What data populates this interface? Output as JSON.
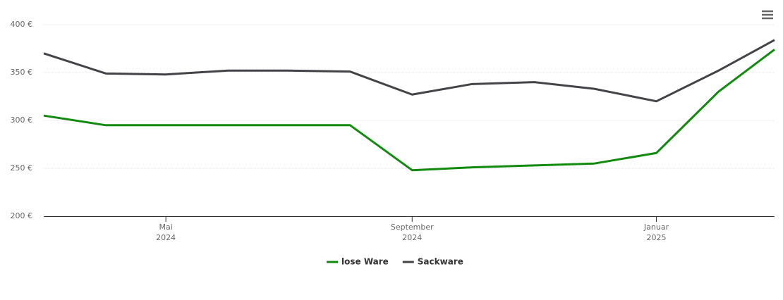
{
  "chart_data": {
    "type": "line",
    "x": [
      "2024-03",
      "2024-04",
      "2024-05",
      "2024-06",
      "2024-07",
      "2024-08",
      "2024-09",
      "2024-10",
      "2024-11",
      "2024-12",
      "2025-01",
      "2025-02",
      "2025-03"
    ],
    "series": [
      {
        "name": "lose Ware",
        "color": "#118a0d",
        "values": [
          305,
          295,
          295,
          295,
          295,
          295,
          248,
          251,
          253,
          255,
          266,
          330,
          374
        ]
      },
      {
        "name": "Sackware",
        "color": "#434348",
        "values": [
          370,
          349,
          348,
          352,
          352,
          351,
          327,
          338,
          340,
          333,
          320,
          352,
          384
        ]
      }
    ],
    "xlim": [
      "2024-03",
      "2025-03"
    ],
    "xticks": [
      {
        "value": "2024-05",
        "label": [
          "Mai",
          "2024"
        ]
      },
      {
        "value": "2024-09",
        "label": [
          "September",
          "2024"
        ]
      },
      {
        "value": "2025-01",
        "label": [
          "Januar",
          "2025"
        ]
      }
    ],
    "ylim": [
      200,
      400
    ],
    "yticks": [
      {
        "value": 200,
        "label": "200 €"
      },
      {
        "value": 250,
        "label": "250 €"
      },
      {
        "value": 300,
        "label": "300 €"
      },
      {
        "value": 350,
        "label": "350 €"
      },
      {
        "value": 400,
        "label": "400 €"
      }
    ],
    "grid": true,
    "legend": "bottom"
  }
}
